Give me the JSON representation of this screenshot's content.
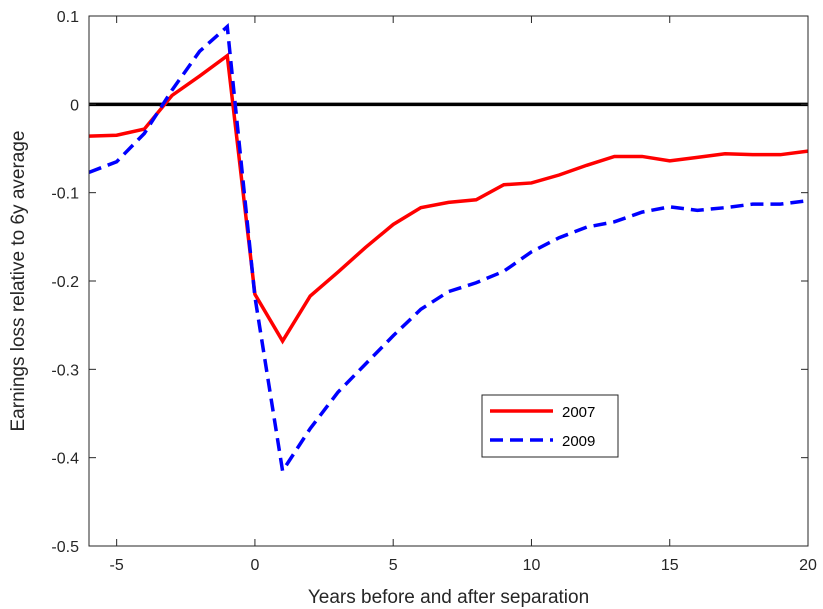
{
  "chart_data": {
    "type": "line",
    "title": "",
    "xlabel": "Years before and after separation",
    "ylabel": "Earnings loss relative to 6y average",
    "xlim": [
      -6,
      20
    ],
    "ylim": [
      -0.5,
      0.1
    ],
    "xticks": [
      -5,
      0,
      5,
      10,
      15,
      20
    ],
    "xtick_labels": [
      "-5",
      "0",
      "5",
      "10",
      "15",
      "20"
    ],
    "yticks": [
      0.1,
      0,
      -0.1,
      -0.2,
      -0.3,
      -0.4,
      -0.5
    ],
    "ytick_labels": [
      "0.1",
      "0",
      "-0.1",
      "-0.2",
      "-0.3",
      "-0.4",
      "-0.5"
    ],
    "grid": false,
    "legend_position": "lower-center",
    "reference_line": {
      "y": 0,
      "color": "#000000"
    },
    "series": [
      {
        "name": "2007",
        "color": "#ff0000",
        "style": "solid",
        "x": [
          -6,
          -5,
          -4,
          -3,
          -2,
          -1,
          0,
          1,
          2,
          3,
          4,
          5,
          6,
          7,
          8,
          9,
          10,
          11,
          12,
          13,
          14,
          15,
          16,
          17,
          18,
          19,
          20
        ],
        "y": [
          -0.036,
          -0.035,
          -0.028,
          0.01,
          0.032,
          0.055,
          -0.215,
          -0.268,
          -0.217,
          -0.19,
          -0.162,
          -0.136,
          -0.117,
          -0.111,
          -0.108,
          -0.091,
          -0.089,
          -0.08,
          -0.069,
          -0.059,
          -0.059,
          -0.064,
          -0.06,
          -0.056,
          -0.057,
          -0.057,
          -0.053
        ]
      },
      {
        "name": "2009",
        "color": "#0000ff",
        "style": "dashed",
        "x": [
          -6,
          -5,
          -4,
          -3,
          -2,
          -1,
          0,
          1,
          2,
          3,
          4,
          5,
          6,
          7,
          8,
          9,
          10,
          11,
          12,
          13,
          14,
          15,
          16,
          17,
          18,
          19,
          20
        ],
        "y": [
          -0.077,
          -0.065,
          -0.033,
          0.016,
          0.06,
          0.088,
          -0.218,
          -0.415,
          -0.367,
          -0.326,
          -0.294,
          -0.262,
          -0.232,
          -0.212,
          -0.202,
          -0.189,
          -0.167,
          -0.151,
          -0.139,
          -0.133,
          -0.122,
          -0.116,
          -0.12,
          -0.117,
          -0.113,
          -0.113,
          -0.109
        ]
      }
    ]
  }
}
